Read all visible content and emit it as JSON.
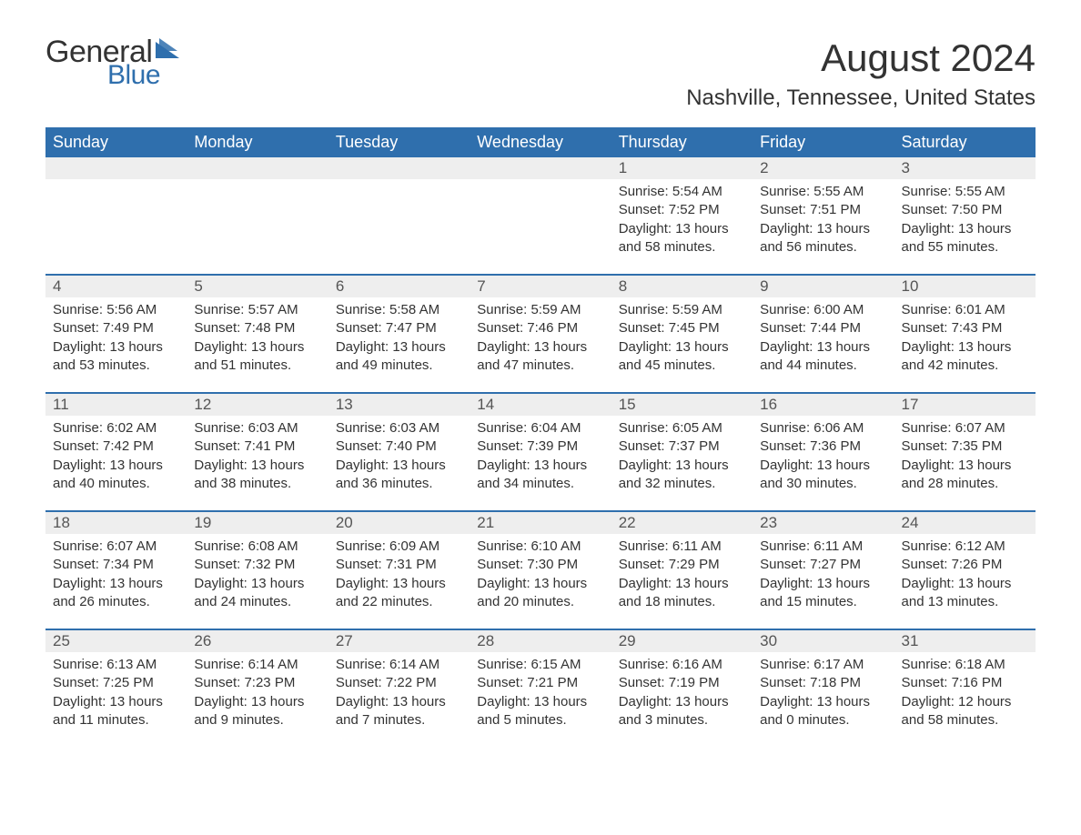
{
  "logo": {
    "text_general": "General",
    "text_blue": "Blue",
    "triangle_color": "#2f6fad"
  },
  "title": "August 2024",
  "location": "Nashville, Tennessee, United States",
  "colors": {
    "header_bg": "#2f6fad",
    "header_text": "#ffffff",
    "daynum_bg": "#eeeeee",
    "body_text": "#333333",
    "page_bg": "#ffffff",
    "row_border": "#2f6fad"
  },
  "weekdays": [
    "Sunday",
    "Monday",
    "Tuesday",
    "Wednesday",
    "Thursday",
    "Friday",
    "Saturday"
  ],
  "weeks": [
    [
      {
        "day": "",
        "sunrise": "",
        "sunset": "",
        "daylight": ""
      },
      {
        "day": "",
        "sunrise": "",
        "sunset": "",
        "daylight": ""
      },
      {
        "day": "",
        "sunrise": "",
        "sunset": "",
        "daylight": ""
      },
      {
        "day": "",
        "sunrise": "",
        "sunset": "",
        "daylight": ""
      },
      {
        "day": "1",
        "sunrise": "Sunrise: 5:54 AM",
        "sunset": "Sunset: 7:52 PM",
        "daylight": "Daylight: 13 hours and 58 minutes."
      },
      {
        "day": "2",
        "sunrise": "Sunrise: 5:55 AM",
        "sunset": "Sunset: 7:51 PM",
        "daylight": "Daylight: 13 hours and 56 minutes."
      },
      {
        "day": "3",
        "sunrise": "Sunrise: 5:55 AM",
        "sunset": "Sunset: 7:50 PM",
        "daylight": "Daylight: 13 hours and 55 minutes."
      }
    ],
    [
      {
        "day": "4",
        "sunrise": "Sunrise: 5:56 AM",
        "sunset": "Sunset: 7:49 PM",
        "daylight": "Daylight: 13 hours and 53 minutes."
      },
      {
        "day": "5",
        "sunrise": "Sunrise: 5:57 AM",
        "sunset": "Sunset: 7:48 PM",
        "daylight": "Daylight: 13 hours and 51 minutes."
      },
      {
        "day": "6",
        "sunrise": "Sunrise: 5:58 AM",
        "sunset": "Sunset: 7:47 PM",
        "daylight": "Daylight: 13 hours and 49 minutes."
      },
      {
        "day": "7",
        "sunrise": "Sunrise: 5:59 AM",
        "sunset": "Sunset: 7:46 PM",
        "daylight": "Daylight: 13 hours and 47 minutes."
      },
      {
        "day": "8",
        "sunrise": "Sunrise: 5:59 AM",
        "sunset": "Sunset: 7:45 PM",
        "daylight": "Daylight: 13 hours and 45 minutes."
      },
      {
        "day": "9",
        "sunrise": "Sunrise: 6:00 AM",
        "sunset": "Sunset: 7:44 PM",
        "daylight": "Daylight: 13 hours and 44 minutes."
      },
      {
        "day": "10",
        "sunrise": "Sunrise: 6:01 AM",
        "sunset": "Sunset: 7:43 PM",
        "daylight": "Daylight: 13 hours and 42 minutes."
      }
    ],
    [
      {
        "day": "11",
        "sunrise": "Sunrise: 6:02 AM",
        "sunset": "Sunset: 7:42 PM",
        "daylight": "Daylight: 13 hours and 40 minutes."
      },
      {
        "day": "12",
        "sunrise": "Sunrise: 6:03 AM",
        "sunset": "Sunset: 7:41 PM",
        "daylight": "Daylight: 13 hours and 38 minutes."
      },
      {
        "day": "13",
        "sunrise": "Sunrise: 6:03 AM",
        "sunset": "Sunset: 7:40 PM",
        "daylight": "Daylight: 13 hours and 36 minutes."
      },
      {
        "day": "14",
        "sunrise": "Sunrise: 6:04 AM",
        "sunset": "Sunset: 7:39 PM",
        "daylight": "Daylight: 13 hours and 34 minutes."
      },
      {
        "day": "15",
        "sunrise": "Sunrise: 6:05 AM",
        "sunset": "Sunset: 7:37 PM",
        "daylight": "Daylight: 13 hours and 32 minutes."
      },
      {
        "day": "16",
        "sunrise": "Sunrise: 6:06 AM",
        "sunset": "Sunset: 7:36 PM",
        "daylight": "Daylight: 13 hours and 30 minutes."
      },
      {
        "day": "17",
        "sunrise": "Sunrise: 6:07 AM",
        "sunset": "Sunset: 7:35 PM",
        "daylight": "Daylight: 13 hours and 28 minutes."
      }
    ],
    [
      {
        "day": "18",
        "sunrise": "Sunrise: 6:07 AM",
        "sunset": "Sunset: 7:34 PM",
        "daylight": "Daylight: 13 hours and 26 minutes."
      },
      {
        "day": "19",
        "sunrise": "Sunrise: 6:08 AM",
        "sunset": "Sunset: 7:32 PM",
        "daylight": "Daylight: 13 hours and 24 minutes."
      },
      {
        "day": "20",
        "sunrise": "Sunrise: 6:09 AM",
        "sunset": "Sunset: 7:31 PM",
        "daylight": "Daylight: 13 hours and 22 minutes."
      },
      {
        "day": "21",
        "sunrise": "Sunrise: 6:10 AM",
        "sunset": "Sunset: 7:30 PM",
        "daylight": "Daylight: 13 hours and 20 minutes."
      },
      {
        "day": "22",
        "sunrise": "Sunrise: 6:11 AM",
        "sunset": "Sunset: 7:29 PM",
        "daylight": "Daylight: 13 hours and 18 minutes."
      },
      {
        "day": "23",
        "sunrise": "Sunrise: 6:11 AM",
        "sunset": "Sunset: 7:27 PM",
        "daylight": "Daylight: 13 hours and 15 minutes."
      },
      {
        "day": "24",
        "sunrise": "Sunrise: 6:12 AM",
        "sunset": "Sunset: 7:26 PM",
        "daylight": "Daylight: 13 hours and 13 minutes."
      }
    ],
    [
      {
        "day": "25",
        "sunrise": "Sunrise: 6:13 AM",
        "sunset": "Sunset: 7:25 PM",
        "daylight": "Daylight: 13 hours and 11 minutes."
      },
      {
        "day": "26",
        "sunrise": "Sunrise: 6:14 AM",
        "sunset": "Sunset: 7:23 PM",
        "daylight": "Daylight: 13 hours and 9 minutes."
      },
      {
        "day": "27",
        "sunrise": "Sunrise: 6:14 AM",
        "sunset": "Sunset: 7:22 PM",
        "daylight": "Daylight: 13 hours and 7 minutes."
      },
      {
        "day": "28",
        "sunrise": "Sunrise: 6:15 AM",
        "sunset": "Sunset: 7:21 PM",
        "daylight": "Daylight: 13 hours and 5 minutes."
      },
      {
        "day": "29",
        "sunrise": "Sunrise: 6:16 AM",
        "sunset": "Sunset: 7:19 PM",
        "daylight": "Daylight: 13 hours and 3 minutes."
      },
      {
        "day": "30",
        "sunrise": "Sunrise: 6:17 AM",
        "sunset": "Sunset: 7:18 PM",
        "daylight": "Daylight: 13 hours and 0 minutes."
      },
      {
        "day": "31",
        "sunrise": "Sunrise: 6:18 AM",
        "sunset": "Sunset: 7:16 PM",
        "daylight": "Daylight: 12 hours and 58 minutes."
      }
    ]
  ]
}
